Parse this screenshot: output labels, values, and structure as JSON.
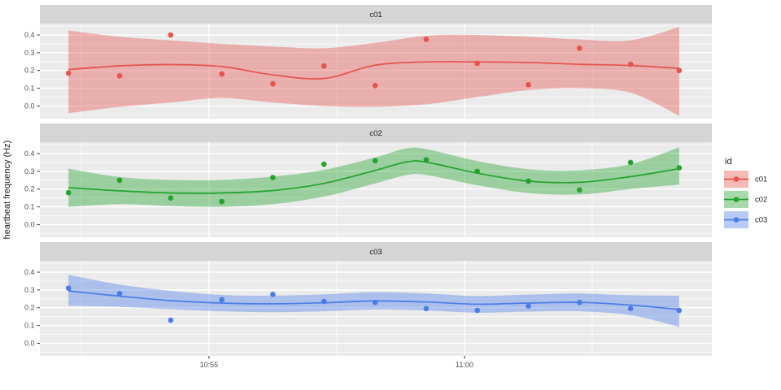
{
  "figure": {
    "y_axis_title": "heartbeat frequency (Hz)",
    "background": "#FFFFFF",
    "panel_bg": "#EBEBEB",
    "strip_bg": "#D5D5D5",
    "grid_color": "#FFFFFF",
    "axis_tick_color": "#333333",
    "axis_label_color": "#4D4D4D",
    "text_color": "#1A1A1A"
  },
  "legend": {
    "title": "id",
    "entries": [
      {
        "label": "c01",
        "color": "#E4534E"
      },
      {
        "label": "c02",
        "color": "#23A32D"
      },
      {
        "label": "c03",
        "color": "#4A7DE8"
      }
    ]
  },
  "chart_data": {
    "type": "scatter",
    "subtype": "points + loess smooth line + confidence ribbon, faceted rows",
    "title": "",
    "xlabel": "",
    "ylabel": "heartbeat frequency (Hz)",
    "x_unit": "time of day (hh:mm), x values below are minutes after 10:00",
    "x_domain": [
      51.69,
      64.84
    ],
    "y_domain": [
      -0.071,
      0.464
    ],
    "x_ticks": [
      {
        "x": 55,
        "label": "10:55"
      },
      {
        "x": 60,
        "label": "11:00"
      }
    ],
    "x_minor_ticks": [
      52.5,
      57.5,
      62.5
    ],
    "y_ticks": [
      {
        "v": 0.0,
        "label": "0.0"
      },
      {
        "v": 0.1,
        "label": "0.1"
      },
      {
        "v": 0.2,
        "label": "0.2"
      },
      {
        "v": 0.3,
        "label": "0.3"
      },
      {
        "v": 0.4,
        "label": "0.4"
      }
    ],
    "y_minor_ticks": [
      -0.05,
      0.05,
      0.15,
      0.25,
      0.35,
      0.45
    ],
    "grid": true,
    "legend_position": "right",
    "facets": [
      {
        "id": "c01",
        "strip_label": "c01",
        "color": "#E4534E",
        "points": {
          "x": [
            52.25,
            53.25,
            54.25,
            55.25,
            56.25,
            57.25,
            58.25,
            59.25,
            60.25,
            61.25,
            62.25,
            63.25,
            64.2
          ],
          "y": [
            0.185,
            0.17,
            0.4,
            0.18,
            0.125,
            0.225,
            0.115,
            0.375,
            0.24,
            0.12,
            0.325,
            0.235,
            0.2
          ]
        },
        "smooth": [
          [
            52.25,
            0.205,
            -0.04,
            0.425
          ],
          [
            53.25,
            0.226,
            -0.005,
            0.39
          ],
          [
            54.25,
            0.233,
            0.02,
            0.37
          ],
          [
            55.25,
            0.222,
            0.045,
            0.35
          ],
          [
            56.25,
            0.175,
            0.02,
            0.335
          ],
          [
            57.25,
            0.155,
            0.0,
            0.325
          ],
          [
            58.25,
            0.23,
            -0.005,
            0.355
          ],
          [
            59.25,
            0.248,
            0.01,
            0.395
          ],
          [
            60.25,
            0.248,
            0.05,
            0.4
          ],
          [
            61.25,
            0.245,
            0.09,
            0.39
          ],
          [
            62.25,
            0.235,
            0.1,
            0.375
          ],
          [
            63.25,
            0.228,
            0.075,
            0.37
          ],
          [
            64.2,
            0.212,
            -0.055,
            0.445
          ]
        ]
      },
      {
        "id": "c02",
        "strip_label": "c02",
        "color": "#23A32D",
        "points": {
          "x": [
            52.25,
            53.25,
            54.25,
            55.25,
            56.25,
            57.25,
            58.25,
            59.25,
            60.25,
            61.25,
            62.25,
            63.25,
            64.2
          ],
          "y": [
            0.18,
            0.25,
            0.15,
            0.13,
            0.265,
            0.34,
            0.36,
            0.365,
            0.3,
            0.245,
            0.195,
            0.35,
            0.32
          ]
        },
        "smooth": [
          [
            52.25,
            0.208,
            0.1,
            0.315
          ],
          [
            53.25,
            0.19,
            0.115,
            0.268
          ],
          [
            54.25,
            0.178,
            0.105,
            0.252
          ],
          [
            55.25,
            0.178,
            0.1,
            0.252
          ],
          [
            56.25,
            0.192,
            0.115,
            0.27
          ],
          [
            57.25,
            0.232,
            0.158,
            0.308
          ],
          [
            58.25,
            0.305,
            0.232,
            0.378
          ],
          [
            58.85,
            0.352,
            0.278,
            0.428
          ],
          [
            59.25,
            0.352,
            0.28,
            0.425
          ],
          [
            60.25,
            0.29,
            0.222,
            0.358
          ],
          [
            61.25,
            0.245,
            0.178,
            0.312
          ],
          [
            62.25,
            0.238,
            0.17,
            0.306
          ],
          [
            63.25,
            0.27,
            0.2,
            0.34
          ],
          [
            64.2,
            0.315,
            0.225,
            0.435
          ]
        ]
      },
      {
        "id": "c03",
        "strip_label": "c03",
        "color": "#4A7DE8",
        "points": {
          "x": [
            52.25,
            53.25,
            54.25,
            55.25,
            56.25,
            57.25,
            58.25,
            59.25,
            60.25,
            61.25,
            62.25,
            63.25,
            64.2
          ],
          "y": [
            0.31,
            0.28,
            0.13,
            0.245,
            0.275,
            0.235,
            0.23,
            0.195,
            0.185,
            0.21,
            0.23,
            0.195,
            0.185
          ]
        },
        "smooth": [
          [
            52.25,
            0.295,
            0.21,
            0.385
          ],
          [
            53.25,
            0.265,
            0.205,
            0.33
          ],
          [
            54.25,
            0.24,
            0.192,
            0.295
          ],
          [
            55.25,
            0.226,
            0.18,
            0.272
          ],
          [
            56.25,
            0.222,
            0.175,
            0.268
          ],
          [
            57.25,
            0.228,
            0.18,
            0.275
          ],
          [
            58.25,
            0.238,
            0.19,
            0.288
          ],
          [
            59.25,
            0.232,
            0.185,
            0.28
          ],
          [
            60.25,
            0.22,
            0.172,
            0.266
          ],
          [
            61.25,
            0.226,
            0.178,
            0.274
          ],
          [
            62.25,
            0.23,
            0.18,
            0.28
          ],
          [
            63.25,
            0.215,
            0.158,
            0.27
          ],
          [
            64.2,
            0.19,
            0.092,
            0.268
          ]
        ]
      }
    ]
  }
}
